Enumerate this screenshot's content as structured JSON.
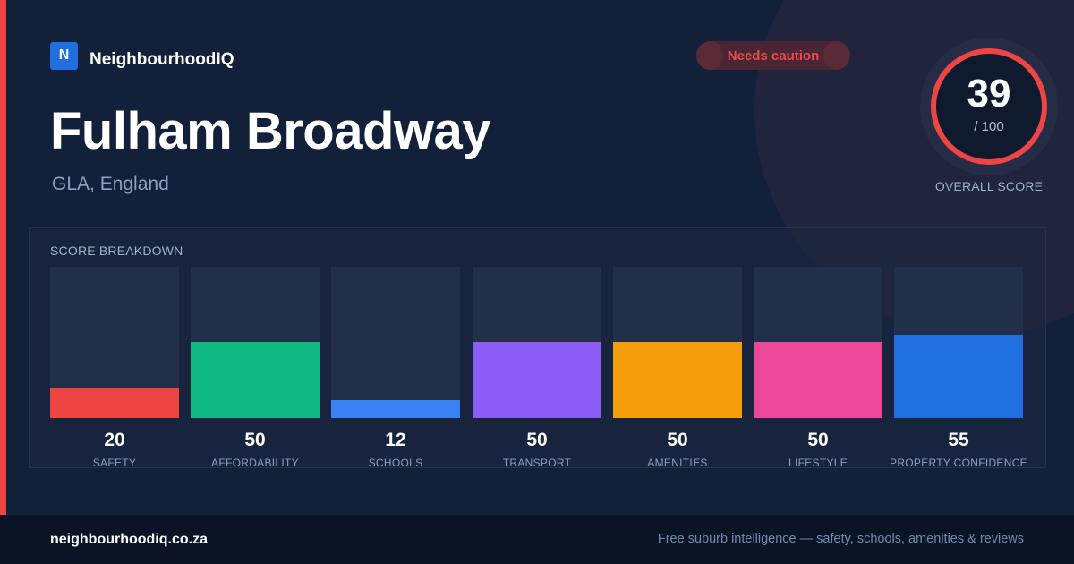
{
  "brand": {
    "logo_letter": "N",
    "name": "NeighbourhoodIQ"
  },
  "badge": {
    "label": "Needs caution",
    "color": "#ef4444"
  },
  "location": {
    "name": "Fulham Broadway",
    "region": "GLA, England"
  },
  "overall": {
    "score": "39",
    "max_label": "/ 100",
    "score_value": 39,
    "max": 100,
    "caption": "OVERALL SCORE",
    "ring_color": "#ef4444"
  },
  "breakdown": {
    "title": "SCORE BREAKDOWN",
    "max": 100,
    "items": [
      {
        "label": "SAFETY",
        "score": "20",
        "value": 20,
        "color": "#ef4444"
      },
      {
        "label": "AFFORDABILITY",
        "score": "50",
        "value": 50,
        "color": "#10b981"
      },
      {
        "label": "SCHOOLS",
        "score": "12",
        "value": 12,
        "color": "#3b82f6"
      },
      {
        "label": "TRANSPORT",
        "score": "50",
        "value": 50,
        "color": "#8b5cf6"
      },
      {
        "label": "AMENITIES",
        "score": "50",
        "value": 50,
        "color": "#f59e0b"
      },
      {
        "label": "LIFESTYLE",
        "score": "50",
        "value": 50,
        "color": "#ec4899"
      },
      {
        "label": "PROPERTY CONFIDENCE",
        "score": "55",
        "value": 55,
        "color": "#1f6fe0"
      }
    ]
  },
  "footer": {
    "domain": "neighbourhoodiq.co.za",
    "tagline": "Free suburb intelligence — safety, schools, amenities & reviews"
  }
}
